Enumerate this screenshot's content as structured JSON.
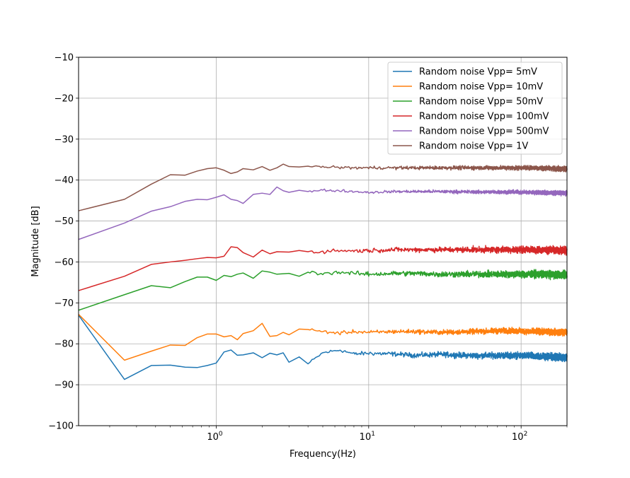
{
  "chart_data": {
    "type": "line",
    "title": "",
    "xlabel": "Frequency(Hz)",
    "ylabel": "Magnitude [dB]",
    "x_scale": "log",
    "xlim": [
      0.125,
      200
    ],
    "ylim": [
      -100,
      -10
    ],
    "x_ticks": [
      {
        "value": 1,
        "base": "10",
        "exp": "0"
      },
      {
        "value": 10,
        "base": "10",
        "exp": "1"
      },
      {
        "value": 100,
        "base": "10",
        "exp": "2"
      }
    ],
    "y_ticks": [
      {
        "value": -10,
        "label": "−10"
      },
      {
        "value": -20,
        "label": "−20"
      },
      {
        "value": -30,
        "label": "−30"
      },
      {
        "value": -40,
        "label": "−40"
      },
      {
        "value": -50,
        "label": "−50"
      },
      {
        "value": -60,
        "label": "−60"
      },
      {
        "value": -70,
        "label": "−70"
      },
      {
        "value": -80,
        "label": "−80"
      },
      {
        "value": -90,
        "label": "−90"
      },
      {
        "value": -100,
        "label": "−100"
      }
    ],
    "grid": true,
    "legend_position": "top-right",
    "series": [
      {
        "name": "Random noise Vpp= 5mV",
        "color": "#1f77b4",
        "points": [
          [
            0.125,
            -73
          ],
          [
            0.25,
            -88.7
          ],
          [
            0.375,
            -85.3
          ],
          [
            0.5,
            -85.2
          ],
          [
            0.625,
            -85.7
          ],
          [
            0.75,
            -85.8
          ],
          [
            0.875,
            -85.3
          ],
          [
            1.0,
            -84.7
          ],
          [
            1.125,
            -82
          ],
          [
            1.25,
            -81.5
          ],
          [
            1.375,
            -82.8
          ],
          [
            1.5,
            -82.7
          ],
          [
            1.75,
            -82.2
          ],
          [
            2.0,
            -83.4
          ],
          [
            2.25,
            -82.3
          ],
          [
            2.5,
            -82.7
          ],
          [
            2.75,
            -82.2
          ],
          [
            3.0,
            -84.5
          ],
          [
            3.5,
            -83.2
          ],
          [
            4.0,
            -84.9
          ],
          [
            5,
            -82.2
          ],
          [
            6.5,
            -81.5
          ],
          [
            8,
            -82.5
          ],
          [
            10,
            -82.3
          ],
          [
            15,
            -82.5
          ],
          [
            20,
            -82.8
          ],
          [
            30,
            -82.6
          ],
          [
            50,
            -82.9
          ],
          [
            80,
            -82.8
          ],
          [
            120,
            -83.0
          ],
          [
            200,
            -83.3
          ]
        ],
        "noise_amplitude": 1.3
      },
      {
        "name": "Random noise Vpp= 10mV",
        "color": "#ff7f0e",
        "points": [
          [
            0.125,
            -72.8
          ],
          [
            0.25,
            -84
          ],
          [
            0.375,
            -81.8
          ],
          [
            0.5,
            -80.3
          ],
          [
            0.625,
            -80.4
          ],
          [
            0.75,
            -78.5
          ],
          [
            0.875,
            -77.6
          ],
          [
            1.0,
            -77.6
          ],
          [
            1.125,
            -78.3
          ],
          [
            1.25,
            -78
          ],
          [
            1.375,
            -79
          ],
          [
            1.5,
            -77.5
          ],
          [
            1.75,
            -76.8
          ],
          [
            2.0,
            -75
          ],
          [
            2.25,
            -78.2
          ],
          [
            2.5,
            -78
          ],
          [
            2.75,
            -77.2
          ],
          [
            3.0,
            -77.8
          ],
          [
            3.5,
            -76.4
          ],
          [
            4.0,
            -76.5
          ],
          [
            5,
            -77
          ],
          [
            6.5,
            -77.4
          ],
          [
            8,
            -77
          ],
          [
            10,
            -77.2
          ],
          [
            15,
            -77
          ],
          [
            20,
            -77
          ],
          [
            30,
            -77.2
          ],
          [
            50,
            -77
          ],
          [
            80,
            -76.8
          ],
          [
            120,
            -77.0
          ],
          [
            200,
            -77.2
          ]
        ],
        "noise_amplitude": 1.2
      },
      {
        "name": "Random noise Vpp= 50mV",
        "color": "#2ca02c",
        "points": [
          [
            0.125,
            -71.8
          ],
          [
            0.25,
            -68
          ],
          [
            0.375,
            -65.8
          ],
          [
            0.5,
            -66.3
          ],
          [
            0.625,
            -64.8
          ],
          [
            0.75,
            -63.7
          ],
          [
            0.875,
            -63.7
          ],
          [
            1.0,
            -64.5
          ],
          [
            1.125,
            -63.3
          ],
          [
            1.25,
            -63.6
          ],
          [
            1.375,
            -63
          ],
          [
            1.5,
            -62.7
          ],
          [
            1.75,
            -64
          ],
          [
            2.0,
            -62.2
          ],
          [
            2.25,
            -62.5
          ],
          [
            2.5,
            -63
          ],
          [
            3.0,
            -62.8
          ],
          [
            3.5,
            -63.5
          ],
          [
            4.0,
            -62.5
          ],
          [
            5,
            -62.8
          ],
          [
            6.5,
            -62.5
          ],
          [
            8,
            -62.8
          ],
          [
            10,
            -63
          ],
          [
            15,
            -62.8
          ],
          [
            20,
            -62.8
          ],
          [
            30,
            -63
          ],
          [
            50,
            -63
          ],
          [
            80,
            -63
          ],
          [
            120,
            -63.0
          ],
          [
            200,
            -63.2
          ]
        ],
        "noise_amplitude": 1.4
      },
      {
        "name": "Random noise Vpp= 100mV",
        "color": "#d62728",
        "points": [
          [
            0.125,
            -67
          ],
          [
            0.25,
            -63.5
          ],
          [
            0.375,
            -60.6
          ],
          [
            0.5,
            -60
          ],
          [
            0.625,
            -59.6
          ],
          [
            0.75,
            -59.2
          ],
          [
            0.875,
            -58.9
          ],
          [
            1.0,
            -59
          ],
          [
            1.125,
            -58.6
          ],
          [
            1.25,
            -56.3
          ],
          [
            1.375,
            -56.5
          ],
          [
            1.5,
            -57.7
          ],
          [
            1.75,
            -58.8
          ],
          [
            2.0,
            -57.1
          ],
          [
            2.25,
            -58
          ],
          [
            2.5,
            -57.5
          ],
          [
            3.0,
            -57.6
          ],
          [
            3.5,
            -57.2
          ],
          [
            4.0,
            -57.5
          ],
          [
            5,
            -57.5
          ],
          [
            6.5,
            -57.2
          ],
          [
            8,
            -57.3
          ],
          [
            10,
            -57.2
          ],
          [
            15,
            -57
          ],
          [
            20,
            -57
          ],
          [
            30,
            -57
          ],
          [
            50,
            -57
          ],
          [
            80,
            -57
          ],
          [
            120,
            -57.0
          ],
          [
            200,
            -57.2
          ]
        ],
        "noise_amplitude": 1.3
      },
      {
        "name": "Random noise Vpp= 500mV",
        "color": "#9467bd",
        "points": [
          [
            0.125,
            -54.5
          ],
          [
            0.25,
            -50.5
          ],
          [
            0.375,
            -47.6
          ],
          [
            0.5,
            -46.5
          ],
          [
            0.625,
            -45.2
          ],
          [
            0.75,
            -44.7
          ],
          [
            0.875,
            -44.8
          ],
          [
            1.0,
            -44.2
          ],
          [
            1.125,
            -43.6
          ],
          [
            1.25,
            -44.7
          ],
          [
            1.375,
            -45
          ],
          [
            1.5,
            -45.7
          ],
          [
            1.75,
            -43.5
          ],
          [
            2.0,
            -43.2
          ],
          [
            2.25,
            -43.5
          ],
          [
            2.5,
            -41.7
          ],
          [
            2.75,
            -42.6
          ],
          [
            3.0,
            -43
          ],
          [
            3.5,
            -42.5
          ],
          [
            4.0,
            -42.8
          ],
          [
            5,
            -42.5
          ],
          [
            6.5,
            -42.6
          ],
          [
            8,
            -42.8
          ],
          [
            10,
            -43
          ],
          [
            15,
            -42.8
          ],
          [
            20,
            -42.8
          ],
          [
            30,
            -42.8
          ],
          [
            50,
            -42.9
          ],
          [
            80,
            -42.9
          ],
          [
            120,
            -43.0
          ],
          [
            200,
            -43.2
          ]
        ],
        "noise_amplitude": 0.8
      },
      {
        "name": "Random noise Vpp= 1V",
        "color": "#8c564b",
        "points": [
          [
            0.125,
            -47.5
          ],
          [
            0.25,
            -44.7
          ],
          [
            0.375,
            -41
          ],
          [
            0.5,
            -38.7
          ],
          [
            0.625,
            -38.8
          ],
          [
            0.75,
            -37.8
          ],
          [
            0.875,
            -37.2
          ],
          [
            1.0,
            -37
          ],
          [
            1.125,
            -37.6
          ],
          [
            1.25,
            -38.4
          ],
          [
            1.375,
            -38
          ],
          [
            1.5,
            -37.2
          ],
          [
            1.75,
            -37.5
          ],
          [
            2.0,
            -36.7
          ],
          [
            2.25,
            -37.6
          ],
          [
            2.5,
            -37
          ],
          [
            2.75,
            -36.1
          ],
          [
            3.0,
            -36.7
          ],
          [
            3.5,
            -36.8
          ],
          [
            4.0,
            -36.6
          ],
          [
            5,
            -36.8
          ],
          [
            6.5,
            -36.9
          ],
          [
            8,
            -37
          ],
          [
            10,
            -37
          ],
          [
            15,
            -37
          ],
          [
            20,
            -37
          ],
          [
            30,
            -37
          ],
          [
            50,
            -37
          ],
          [
            80,
            -37
          ],
          [
            120,
            -37.0
          ],
          [
            200,
            -37.3
          ]
        ],
        "noise_amplitude": 0.9
      }
    ]
  }
}
